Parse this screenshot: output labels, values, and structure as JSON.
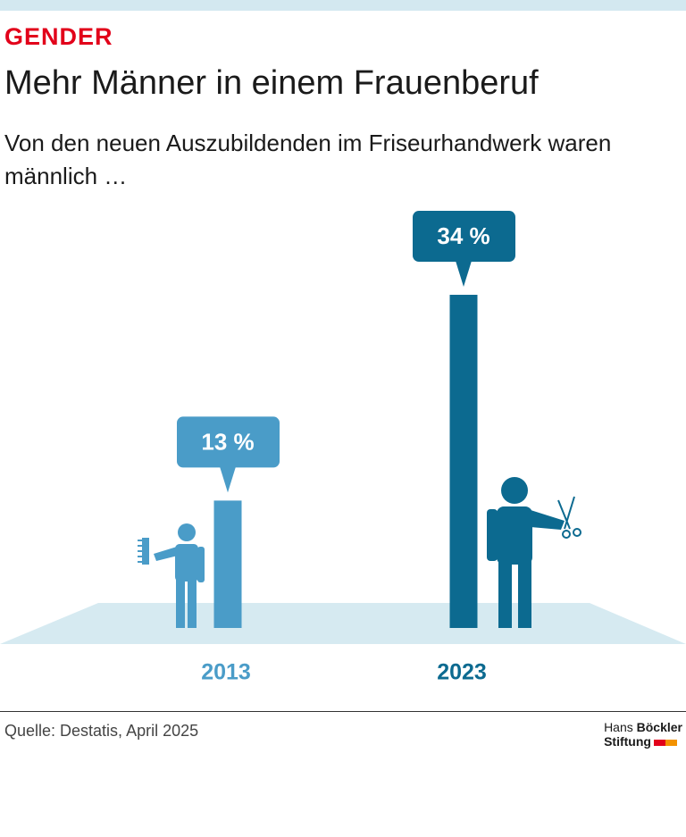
{
  "kicker": "GENDER",
  "logo": {
    "line1a": "Hans",
    "line1b": "Böckler",
    "line2": "Stiftung"
  },
  "source": "Quelle: Destatis, April 2025",
  "chart_data": {
    "type": "bar",
    "title": "Mehr Männer in einem Frauenberuf",
    "subtitle": "Von den neuen Auszubildenden im Friseurhandwerk waren männlich …",
    "categories": [
      "2013",
      "2023"
    ],
    "values": [
      13,
      34
    ],
    "value_labels": [
      "13 %",
      "34 %"
    ],
    "colors": [
      "#4a9cc8",
      "#0c6a90"
    ]
  }
}
